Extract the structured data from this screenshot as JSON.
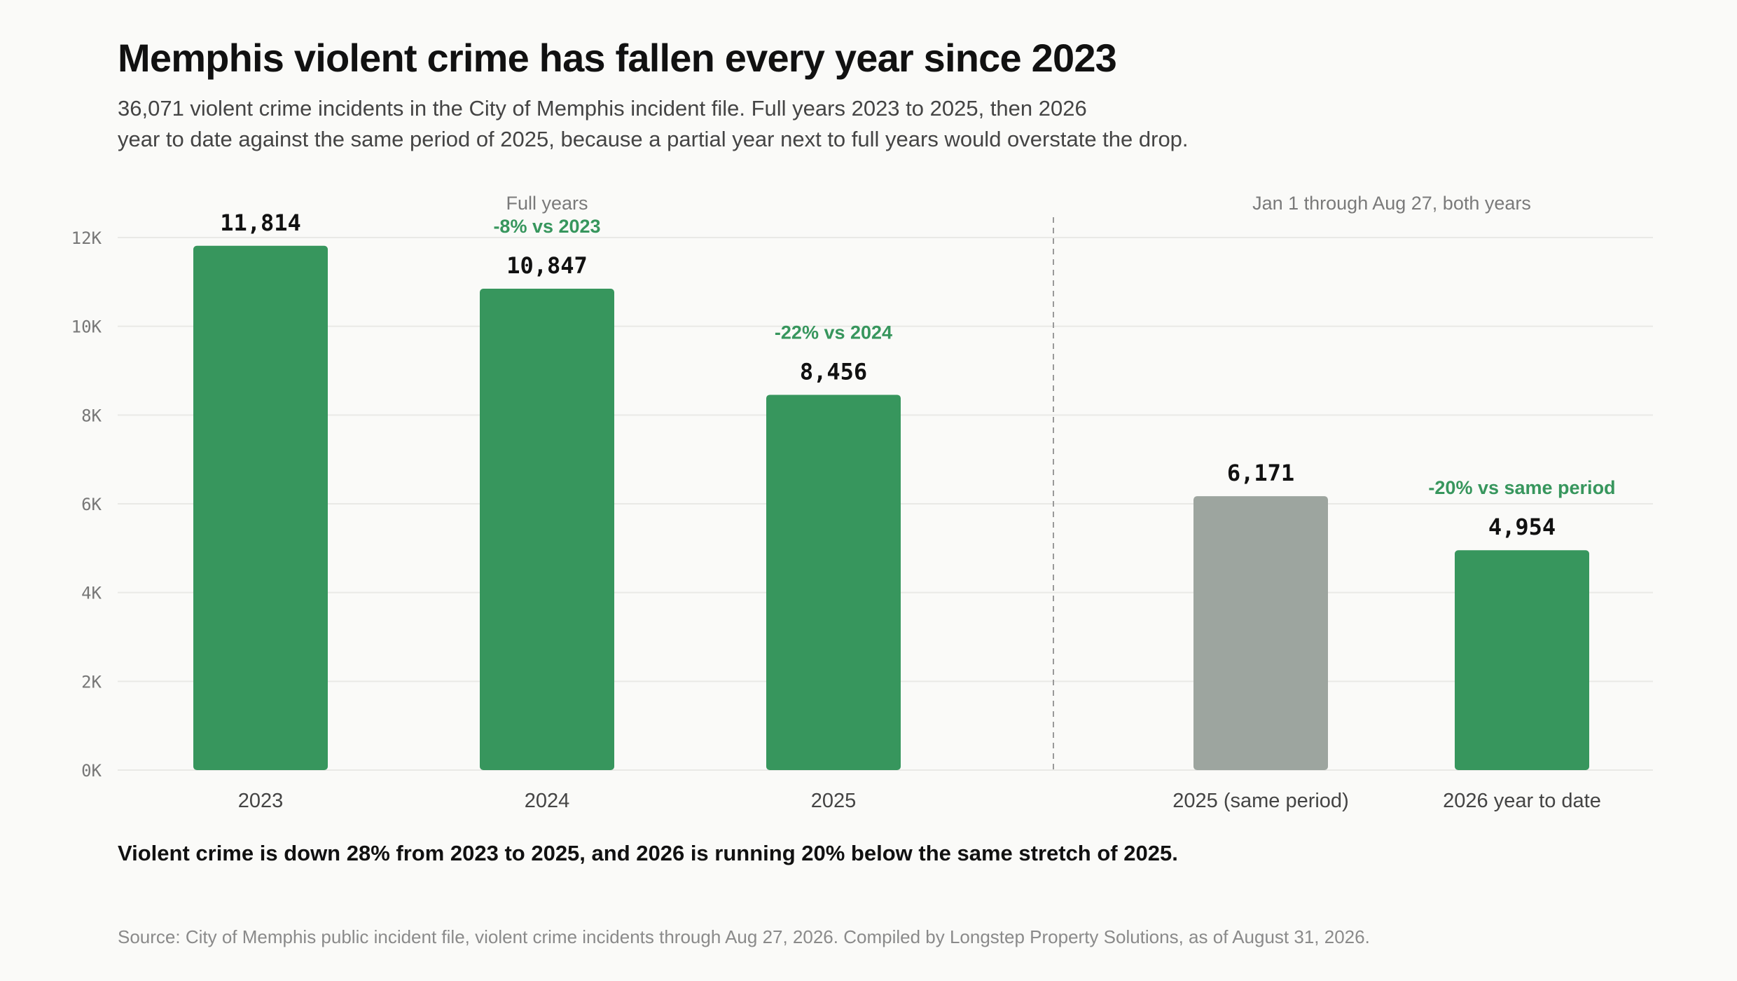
{
  "header": {
    "title": "Memphis violent crime has fallen every year since 2023",
    "subtitle_line1": "36,071 violent crime incidents in the City of Memphis incident file. Full years 2023 to 2025, then 2026",
    "subtitle_line2": "year to date against the same period of 2025, because a partial year next to full years would overstate the drop."
  },
  "takeaway": "Violent crime is down 28% from 2023 to 2025, and 2026 is running 20% below the same stretch of 2025.",
  "source": "Source: City of Memphis public incident file, violent crime incidents through Aug 27, 2026. Compiled by Longstep Property Solutions, as of August 31, 2026.",
  "colors": {
    "green": "#37965d",
    "gray": "#9da59f",
    "change_text": "#37965d",
    "grid": "#e9e9e6",
    "divider": "#999999"
  },
  "chart_data": {
    "type": "bar",
    "ylim": [
      0,
      12000
    ],
    "yticks": [
      0,
      2000,
      4000,
      6000,
      8000,
      10000,
      12000
    ],
    "ytick_labels": [
      "0K",
      "2K",
      "4K",
      "6K",
      "8K",
      "10K",
      "12K"
    ],
    "grid": true,
    "panels": [
      {
        "label": "Full years",
        "bars": [
          {
            "category": "2023",
            "value": 11814,
            "value_label": "11,814",
            "change": "",
            "color": "green"
          },
          {
            "category": "2024",
            "value": 10847,
            "value_label": "10,847",
            "change": "-8% vs 2023",
            "color": "green"
          },
          {
            "category": "2025",
            "value": 8456,
            "value_label": "8,456",
            "change": "-22% vs 2024",
            "color": "green"
          }
        ]
      },
      {
        "label": "Jan 1 through Aug 27, both years",
        "bars": [
          {
            "category": "2025 (same period)",
            "value": 6171,
            "value_label": "6,171",
            "change": "",
            "color": "gray"
          },
          {
            "category": "2026 year to date",
            "value": 4954,
            "value_label": "4,954",
            "change": "-20% vs same period",
            "color": "green"
          }
        ]
      }
    ]
  }
}
